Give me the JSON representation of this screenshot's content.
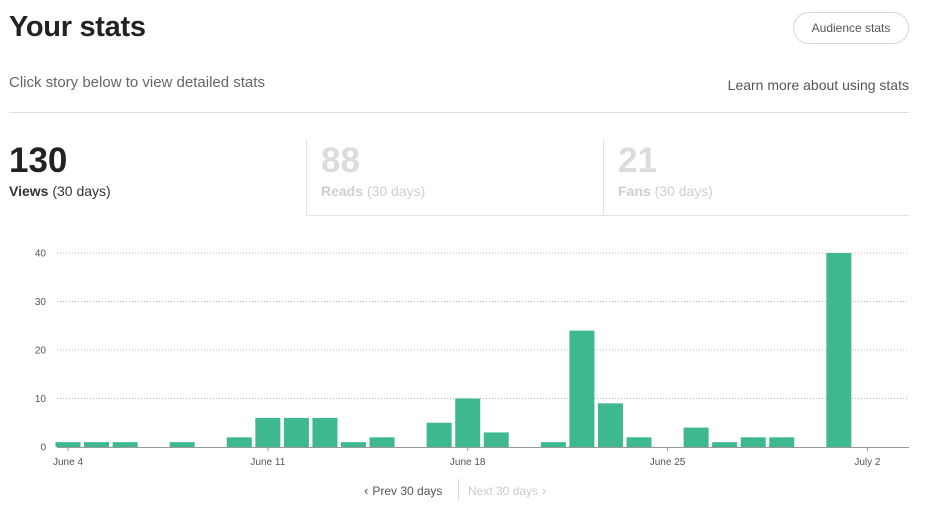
{
  "header": {
    "title": "Your stats",
    "audience_button": "Audience stats",
    "subtitle": "Click story below to view detailed stats",
    "learn_link": "Learn more about using stats"
  },
  "tabs": [
    {
      "value": "130",
      "label_bold": "Views",
      "label_rest": " (30 days)",
      "active": true
    },
    {
      "value": "88",
      "label_bold": "Reads",
      "label_rest": " (30 days)",
      "active": false
    },
    {
      "value": "21",
      "label_bold": "Fans",
      "label_rest": " (30 days)",
      "active": false
    }
  ],
  "colors": {
    "bar": "#3db88f",
    "grid": "#bbbbbb",
    "axis": "#999999"
  },
  "chart_data": {
    "type": "bar",
    "ylim": [
      0,
      40
    ],
    "yticks": [
      0,
      10,
      20,
      30,
      40
    ],
    "grid": "horizontal-dotted",
    "xtick_labels": [
      {
        "day": 0,
        "label": "June 4"
      },
      {
        "day": 7,
        "label": "June 11"
      },
      {
        "day": 14,
        "label": "June 18"
      },
      {
        "day": 21,
        "label": "June 25"
      },
      {
        "day": 28,
        "label": "July 2"
      }
    ],
    "days": [
      "June 4",
      "June 5",
      "June 6",
      "June 7",
      "June 8",
      "June 9",
      "June 10",
      "June 11",
      "June 12",
      "June 13",
      "June 14",
      "June 15",
      "June 16",
      "June 17",
      "June 18",
      "June 19",
      "June 20",
      "June 21",
      "June 22",
      "June 23",
      "June 24",
      "June 25",
      "June 26",
      "June 27",
      "June 28",
      "June 29",
      "June 30",
      "July 1",
      "July 2"
    ],
    "values": [
      1,
      1,
      1,
      0,
      1,
      0,
      2,
      6,
      6,
      6,
      1,
      2,
      0,
      5,
      10,
      3,
      0,
      1,
      24,
      9,
      2,
      0,
      4,
      1,
      2,
      2,
      0,
      40,
      0
    ]
  },
  "pager": {
    "prev": "Prev 30 days",
    "next": "Next 30 days"
  }
}
